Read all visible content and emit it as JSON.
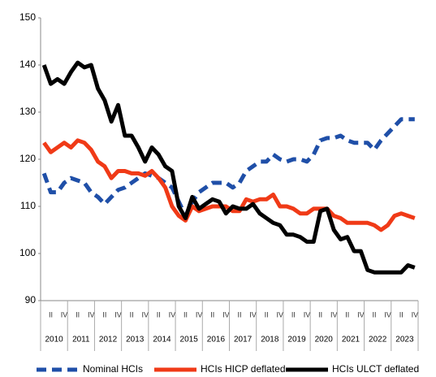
{
  "chart_data": {
    "type": "line",
    "categories": [
      null,
      "II",
      null,
      "IV",
      null,
      "II",
      null,
      "IV",
      null,
      "II",
      null,
      "IV",
      null,
      "II",
      null,
      "IV",
      null,
      "II",
      null,
      "IV",
      null,
      "II",
      null,
      "IV",
      null,
      "II",
      null,
      "IV",
      null,
      "II",
      null,
      "IV",
      null,
      "II",
      null,
      "IV",
      null,
      "II",
      null,
      "IV",
      null,
      "II",
      null,
      "IV",
      null,
      "II",
      null,
      "IV",
      null,
      "II",
      null,
      "IV",
      null,
      "II",
      null,
      "IV"
    ],
    "years": [
      "2010",
      "2011",
      "2012",
      "2013",
      "2014",
      "2015",
      "2016",
      "2017",
      "2018",
      "2019",
      "2020",
      "2021",
      "2022",
      "2023"
    ],
    "series": [
      {
        "name": "Nominal HCIs",
        "color": "#1f4fa8",
        "dashed": true,
        "values": [
          117,
          113,
          113,
          115,
          116,
          115.5,
          115,
          113,
          112,
          110.5,
          112,
          113.5,
          114,
          115,
          116,
          117,
          116.5,
          116,
          115,
          114,
          111,
          108,
          111,
          113,
          114,
          115,
          115,
          115,
          114,
          115,
          117.5,
          118.5,
          119.5,
          119.5,
          121,
          120,
          119.5,
          120,
          120,
          119.5,
          121,
          124,
          124.5,
          124.5,
          125,
          124,
          123.5,
          123.5,
          123.5,
          122,
          124,
          125.5,
          127,
          128.5,
          128.5,
          128.5
        ]
      },
      {
        "name": "HCIs HICP deflated",
        "color": "#f03a17",
        "dashed": false,
        "values": [
          123.5,
          121.5,
          122.5,
          123.5,
          122.5,
          124,
          123.5,
          122,
          119.5,
          118.5,
          116,
          117.5,
          117.5,
          117,
          117,
          116.5,
          117.5,
          116,
          114,
          110,
          108,
          107,
          110,
          109,
          109.5,
          110,
          110,
          110,
          109,
          109,
          111.5,
          111,
          111.5,
          111.5,
          112.5,
          110,
          110,
          109.5,
          108.5,
          108.5,
          109.5,
          109.5,
          109.5,
          108,
          107.5,
          106.5,
          106.5,
          106.5,
          106.5,
          106,
          105,
          106,
          108,
          108.5,
          108,
          107.5
        ]
      },
      {
        "name": "HCIs ULCT deflated",
        "color": "#000000",
        "dashed": false,
        "values": [
          140,
          136,
          137,
          136,
          138.5,
          140.5,
          139.5,
          140,
          135,
          132.5,
          128,
          131.5,
          125,
          125,
          122.5,
          119.5,
          122.5,
          121,
          118.5,
          117.5,
          110,
          107.5,
          112,
          109.5,
          110.5,
          111.5,
          111,
          108.5,
          110,
          109.5,
          109.5,
          110.5,
          108.5,
          107.5,
          106.5,
          106,
          104,
          104,
          103.5,
          102.5,
          102.5,
          109,
          109.5,
          105,
          103,
          103.5,
          100.5,
          100.5,
          96.5,
          96,
          96,
          96,
          96,
          96,
          97.5,
          97
        ]
      }
    ],
    "ylim": [
      90,
      150
    ],
    "yticks": [
      90,
      100,
      110,
      120,
      130,
      140,
      150
    ],
    "legend": "bottom"
  }
}
